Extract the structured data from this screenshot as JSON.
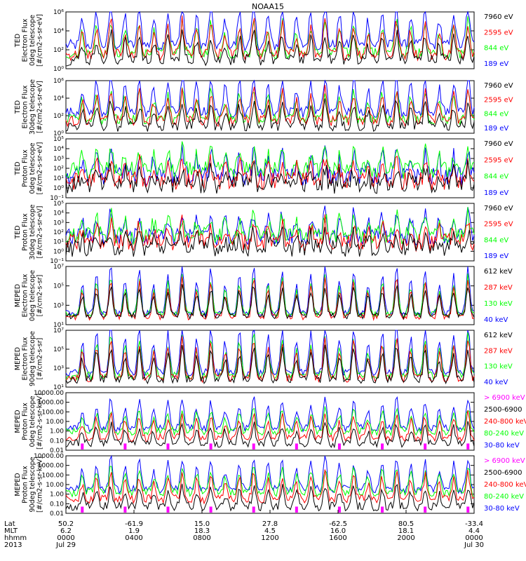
{
  "title": "NOAA15",
  "colors": {
    "black": "#000000",
    "red": "#ff0000",
    "green": "#00ff00",
    "blue": "#0000ff",
    "magenta": "#ff00ff"
  },
  "chart_data": [
    {
      "type": "line",
      "ylabel": [
        "TED",
        "Electron Flux",
        "0deg telescope",
        "[#/cm2-s-sr-eV]"
      ],
      "scale": "log",
      "ylim": [
        1,
        1000000
      ],
      "ticks": [
        {
          "v": 1,
          "label": "10⁰"
        },
        {
          "v": 100,
          "label": "10²"
        },
        {
          "v": 10000,
          "label": "10⁴"
        },
        {
          "v": 1000000,
          "label": "10⁶"
        }
      ],
      "baselines": {
        "blue": 300,
        "red": 30,
        "green": 40,
        "black": 8
      },
      "noise": 1.2,
      "peakScale": 1.0,
      "legend": [
        {
          "text": "7960 eV",
          "color": "#000000"
        },
        {
          "text": "2595 eV",
          "color": "#ff0000"
        },
        {
          "text": "844 eV",
          "color": "#00ff00"
        },
        {
          "text": "189 eV",
          "color": "#0000ff"
        }
      ]
    },
    {
      "type": "line",
      "ylabel": [
        "TED",
        "Electron Flux",
        "30deg telescope",
        "[#/cm2-s-sr-eV]"
      ],
      "scale": "log",
      "ylim": [
        1,
        1000000
      ],
      "ticks": [
        {
          "v": 1,
          "label": "10⁰"
        },
        {
          "v": 100,
          "label": "10²"
        },
        {
          "v": 10000,
          "label": "10⁴"
        },
        {
          "v": 1000000,
          "label": "10⁶"
        }
      ],
      "baselines": {
        "blue": 250,
        "red": 25,
        "green": 35,
        "black": 6
      },
      "noise": 1.2,
      "peakScale": 1.0,
      "legend": [
        {
          "text": "7960 eV",
          "color": "#000000"
        },
        {
          "text": "2595 eV",
          "color": "#ff0000"
        },
        {
          "text": "844 eV",
          "color": "#00ff00"
        },
        {
          "text": "189 eV",
          "color": "#0000ff"
        }
      ]
    },
    {
      "type": "line",
      "ylabel": [
        "TED",
        "Proton Flux",
        "0deg telescope",
        "[#/cm2-s-sr-eV]"
      ],
      "scale": "log",
      "ylim": [
        0.1,
        100000
      ],
      "ticks": [
        {
          "v": 0.1,
          "label": "10⁻¹"
        },
        {
          "v": 1,
          "label": "10⁰"
        },
        {
          "v": 10,
          "label": "10¹"
        },
        {
          "v": 100,
          "label": "10²"
        },
        {
          "v": 1000,
          "label": "10³"
        },
        {
          "v": 10000,
          "label": "10⁴"
        },
        {
          "v": 100000,
          "label": "10⁵"
        }
      ],
      "baselines": {
        "blue": 15,
        "red": 5,
        "green": 60,
        "black": 2
      },
      "noise": 1.8,
      "peakScale": 0.6,
      "legend": [
        {
          "text": "7960 eV",
          "color": "#000000"
        },
        {
          "text": "2595 eV",
          "color": "#ff0000"
        },
        {
          "text": "844 eV",
          "color": "#00ff00"
        },
        {
          "text": "189 eV",
          "color": "#0000ff"
        }
      ]
    },
    {
      "type": "line",
      "ylabel": [
        "TED",
        "Proton Flux",
        "30deg telescope",
        "[#/cm2-s-sr-eV]"
      ],
      "scale": "log",
      "ylim": [
        0.1,
        100000
      ],
      "ticks": [
        {
          "v": 0.1,
          "label": "10⁻¹"
        },
        {
          "v": 1,
          "label": "10⁰"
        },
        {
          "v": 10,
          "label": "10¹"
        },
        {
          "v": 100,
          "label": "10²"
        },
        {
          "v": 1000,
          "label": "10³"
        },
        {
          "v": 10000,
          "label": "10⁴"
        },
        {
          "v": 100000,
          "label": "10⁵"
        }
      ],
      "baselines": {
        "blue": 30,
        "red": 8,
        "green": 40,
        "black": 2
      },
      "noise": 1.8,
      "peakScale": 0.6,
      "legend": [
        {
          "text": "7960 eV",
          "color": "#000000"
        },
        {
          "text": "2595 eV",
          "color": "#ff0000"
        },
        {
          "text": "844 eV",
          "color": "#00ff00"
        },
        {
          "text": "189 eV",
          "color": "#0000ff"
        }
      ]
    },
    {
      "type": "line",
      "ylabel": [
        "MEPED",
        "Electron Flux",
        "0deg telescope",
        "[#/cm2-s-sr]"
      ],
      "scale": "log",
      "ylim": [
        10,
        10000000
      ],
      "ticks": [
        {
          "v": 10,
          "label": "10¹"
        },
        {
          "v": 1000,
          "label": "10³"
        },
        {
          "v": 100000,
          "label": "10⁵"
        },
        {
          "v": 10000000,
          "label": "10⁷"
        }
      ],
      "baselines": {
        "blue": 150,
        "red": 60,
        "green": 120,
        "black": 80
      },
      "noise": 0.6,
      "peakScale": 1.1,
      "legend": [
        {
          "text": "612 keV",
          "color": "#000000"
        },
        {
          "text": "287 keV",
          "color": "#ff0000"
        },
        {
          "text": "130 keV",
          "color": "#00ff00"
        },
        {
          "text": "40 keV",
          "color": "#0000ff"
        }
      ]
    },
    {
      "type": "line",
      "ylabel": [
        "MEPED",
        "Electron Flux",
        "90deg telescope",
        "[#/cm2-s-sr]"
      ],
      "scale": "log",
      "ylim": [
        10,
        10000000
      ],
      "ticks": [
        {
          "v": 10,
          "label": "10¹"
        },
        {
          "v": 1000,
          "label": "10³"
        },
        {
          "v": 100000,
          "label": "10⁵"
        },
        {
          "v": 10000000,
          "label": "10⁷"
        }
      ],
      "baselines": {
        "blue": 300,
        "red": 80,
        "green": 150,
        "black": 60
      },
      "noise": 0.8,
      "peakScale": 1.2,
      "legend": [
        {
          "text": "612 keV",
          "color": "#000000"
        },
        {
          "text": "287 keV",
          "color": "#ff0000"
        },
        {
          "text": "130 keV",
          "color": "#00ff00"
        },
        {
          "text": "40 keV",
          "color": "#0000ff"
        }
      ]
    },
    {
      "type": "line",
      "ylabel": [
        "MEPED",
        "Proton Flux",
        "0deg telescope",
        "[#/cm2-s-sr-keV]"
      ],
      "scale": "log",
      "ylim": [
        0.01,
        10000
      ],
      "ticks": [
        {
          "v": 0.01,
          "label": "0.01"
        },
        {
          "v": 0.1,
          "label": "0.10"
        },
        {
          "v": 1,
          "label": "1.00"
        },
        {
          "v": 10,
          "label": "10.00"
        },
        {
          "v": 100,
          "label": "100.00"
        },
        {
          "v": 1000,
          "label": "1000.00"
        },
        {
          "v": 10000,
          "label": "10000.00"
        }
      ],
      "baselines": {
        "blue": 2,
        "red": 0.2,
        "green": 0.9,
        "black": 0.05
      },
      "noise": 0.8,
      "peakScale": 0.7,
      "legend": [
        {
          "text": "> 6900 keV",
          "color": "#ff00ff"
        },
        {
          "text": "2500-6900",
          "color": "#000000"
        },
        {
          "text": "240-800 keV",
          "color": "#ff0000"
        },
        {
          "text": "80-240 keV",
          "color": "#00ff00"
        },
        {
          "text": "30-80 keV",
          "color": "#0000ff"
        }
      ]
    },
    {
      "type": "line",
      "ylabel": [
        "MEPED",
        "Proton Flux",
        "90deg telescope",
        "[#/cm2-s-sr-keV]"
      ],
      "scale": "log",
      "ylim": [
        0.01,
        10000
      ],
      "ticks": [
        {
          "v": 0.01,
          "label": "0.01"
        },
        {
          "v": 0.1,
          "label": "0.10"
        },
        {
          "v": 1,
          "label": "1.00"
        },
        {
          "v": 10,
          "label": "10.00"
        },
        {
          "v": 100,
          "label": "100.00"
        },
        {
          "v": 1000,
          "label": "1000.00"
        },
        {
          "v": 10000,
          "label": "10000.00"
        }
      ],
      "baselines": {
        "blue": 3,
        "red": 0.3,
        "green": 1.5,
        "black": 0.05
      },
      "noise": 0.9,
      "peakScale": 0.75,
      "legend": [
        {
          "text": "> 6900 keV",
          "color": "#ff00ff"
        },
        {
          "text": "2500-6900",
          "color": "#000000"
        },
        {
          "text": "240-800 keV",
          "color": "#ff0000"
        },
        {
          "text": "80-240 keV",
          "color": "#00ff00"
        },
        {
          "text": "30-80 keV",
          "color": "#0000ff"
        }
      ]
    }
  ],
  "peaks": [
    0.04,
    0.075,
    0.11,
    0.145,
    0.18,
    0.215,
    0.25,
    0.285,
    0.32,
    0.355,
    0.39,
    0.425,
    0.46,
    0.495,
    0.53,
    0.565,
    0.6,
    0.635,
    0.67,
    0.705,
    0.74,
    0.775,
    0.81,
    0.845,
    0.88,
    0.915,
    0.95,
    0.985
  ],
  "xaxis": {
    "row_labels": [
      "Lat",
      "MLT",
      "hhmm",
      "2013"
    ],
    "ticks": [
      {
        "frac": 0.0,
        "rows": [
          "50.2",
          "6.2",
          "0000",
          "Jul 29"
        ]
      },
      {
        "frac": 0.1667,
        "rows": [
          "-61.9",
          "1.9",
          "0400",
          ""
        ]
      },
      {
        "frac": 0.3333,
        "rows": [
          "15.0",
          "18.3",
          "0800",
          ""
        ]
      },
      {
        "frac": 0.5,
        "rows": [
          "27.8",
          "4.5",
          "1200",
          ""
        ]
      },
      {
        "frac": 0.6667,
        "rows": [
          "-62.5",
          "16.0",
          "1600",
          ""
        ]
      },
      {
        "frac": 0.8333,
        "rows": [
          "80.5",
          "18.1",
          "2000",
          ""
        ]
      },
      {
        "frac": 1.0,
        "rows": [
          "-33.4",
          "4.4",
          "0000",
          "Jul 30"
        ]
      }
    ]
  }
}
